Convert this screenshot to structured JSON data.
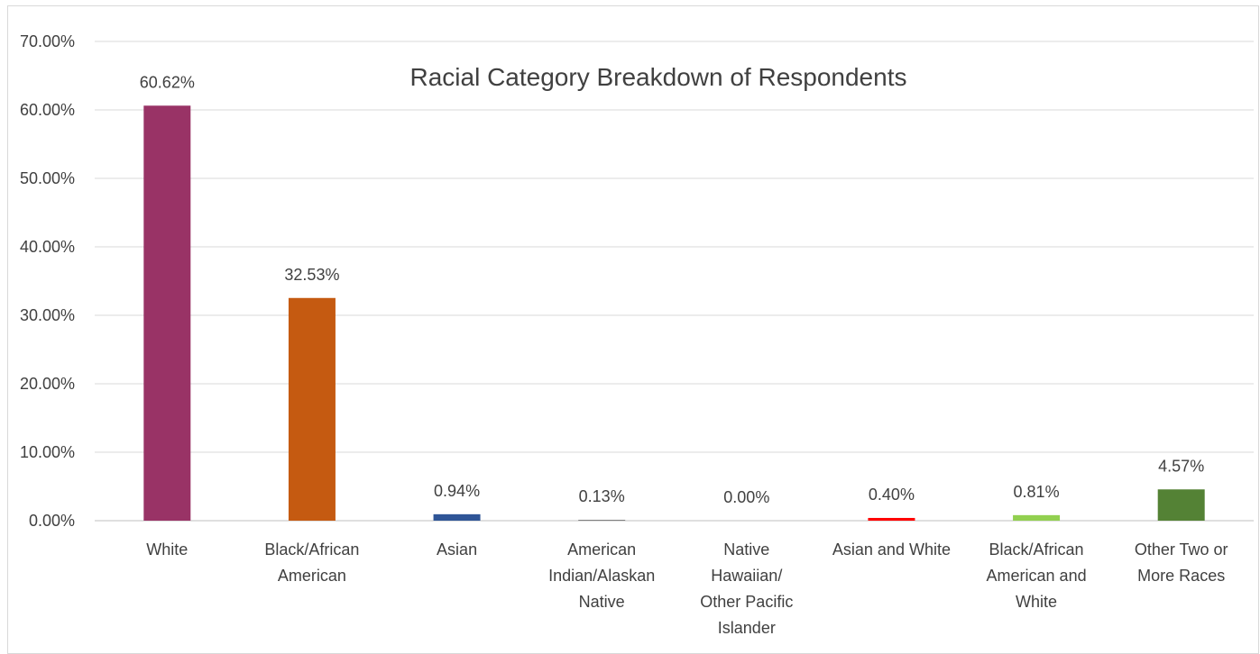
{
  "chart_data": {
    "type": "bar",
    "title": "Racial Category Breakdown of Respondents",
    "xlabel": "",
    "ylabel": "",
    "ylim": [
      0,
      0.7
    ],
    "y_ticks": [
      "0.00%",
      "10.00%",
      "20.00%",
      "30.00%",
      "40.00%",
      "50.00%",
      "60.00%",
      "70.00%"
    ],
    "grid": true,
    "legend": "none",
    "categories": [
      [
        "White"
      ],
      [
        "Black/African",
        "American"
      ],
      [
        "Asian"
      ],
      [
        "American",
        "Indian/Alaskan",
        "Native"
      ],
      [
        "Native",
        "Hawaiian/",
        "Other Pacific",
        "Islander"
      ],
      [
        "Asian and White"
      ],
      [
        "Black/African",
        "American and",
        "White"
      ],
      [
        "Other Two or",
        "More Races"
      ]
    ],
    "values": [
      0.6062,
      0.3253,
      0.0094,
      0.0013,
      0.0,
      0.004,
      0.0081,
      0.0457
    ],
    "data_labels": [
      "60.62%",
      "32.53%",
      "0.94%",
      "0.13%",
      "0.00%",
      "0.40%",
      "0.81%",
      "4.57%"
    ],
    "colors": [
      "#993366",
      "#c55a11",
      "#2f5597",
      "#7f7f7f",
      "#7f7f7f",
      "#ff0000",
      "#92d050",
      "#548235"
    ]
  }
}
